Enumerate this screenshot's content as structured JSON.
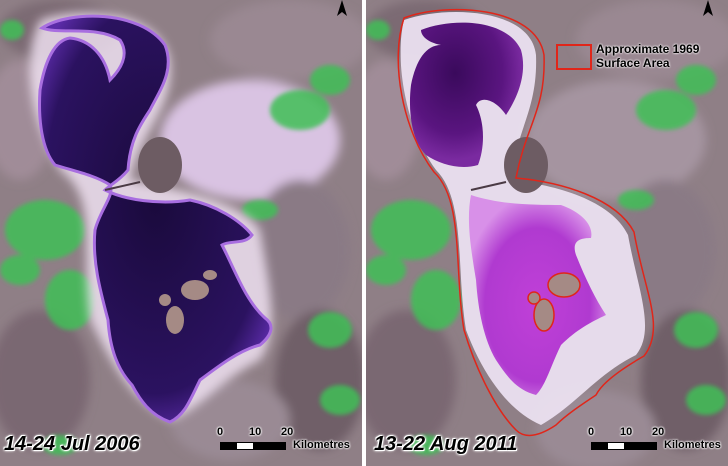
{
  "panels": [
    {
      "date": "14-24 Jul 2006"
    },
    {
      "date": "13-22 Aug 2011"
    }
  ],
  "scale": {
    "ticks": [
      "0",
      "10",
      "20"
    ],
    "unit": "Kilometres"
  },
  "legend": {
    "line1": "Approximate 1969",
    "line2": "Surface Area",
    "color": "#e0261a"
  },
  "icons": {
    "north": "north-arrow-icon"
  },
  "colors": {
    "terrain": "#8d7d86",
    "vegetation": "#3fbf56",
    "lake_2006": "#2a0f5c",
    "lake_2011": "#5a1580",
    "shallow_2011": "#b03ad0",
    "salt": "#efe6f3"
  }
}
